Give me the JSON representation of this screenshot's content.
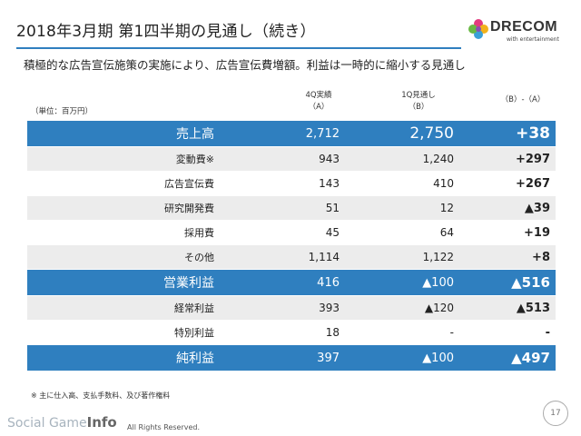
{
  "header": {
    "title": "2018年3月期 第1四半期の見通し（続き）",
    "subtitle": "積極的な広告宣伝施策の実施により、広告宣伝費増額。利益は一時的に縮小する見通し"
  },
  "logo": {
    "name": "DRECOM",
    "tagline": "with entertainment",
    "colors": [
      "#e23b7f",
      "#f2b21b",
      "#3aa0d8",
      "#69b944",
      "#8a4fb0"
    ]
  },
  "table": {
    "unit_label": "（単位：百万円）",
    "columns": [
      {
        "line1": "4Q実績",
        "line2": "（A）"
      },
      {
        "line1": "1Q見通し",
        "line2": "（B）"
      },
      {
        "line1": "（B）-（A）",
        "line2": ""
      }
    ],
    "rows": [
      {
        "label": "売上高",
        "a": "2,712",
        "b": "2,750",
        "diff": "+38",
        "style": "highlight"
      },
      {
        "label": "変動費※",
        "a": "943",
        "b": "1,240",
        "diff": "+297",
        "style": "alt"
      },
      {
        "label": "広告宣伝費",
        "a": "143",
        "b": "410",
        "diff": "+267",
        "style": "plain"
      },
      {
        "label": "研究開発費",
        "a": "51",
        "b": "12",
        "diff": "▲39",
        "style": "alt"
      },
      {
        "label": "採用費",
        "a": "45",
        "b": "64",
        "diff": "+19",
        "style": "plain"
      },
      {
        "label": "その他",
        "a": "1,114",
        "b": "1,122",
        "diff": "+8",
        "style": "alt"
      },
      {
        "label": "営業利益",
        "a": "416",
        "b": "▲100",
        "diff": "▲516",
        "style": "highlight"
      },
      {
        "label": "経常利益",
        "a": "393",
        "b": "▲120",
        "diff": "▲513",
        "style": "alt"
      },
      {
        "label": "特別利益",
        "a": "18",
        "b": "-",
        "diff": "-",
        "style": "plain"
      },
      {
        "label": "純利益",
        "a": "397",
        "b": "▲100",
        "diff": "▲497",
        "style": "highlight"
      }
    ],
    "footnote": "※ 主に仕入高、支払手数料、及び著作権料"
  },
  "footer": {
    "page_number": "17",
    "watermark_prefix": "Social Game",
    "watermark_suffix": "Info",
    "copyright": "All Rights Reserved."
  },
  "colors": {
    "accent": "#2f7fbf",
    "alt_row": "#ececec"
  }
}
